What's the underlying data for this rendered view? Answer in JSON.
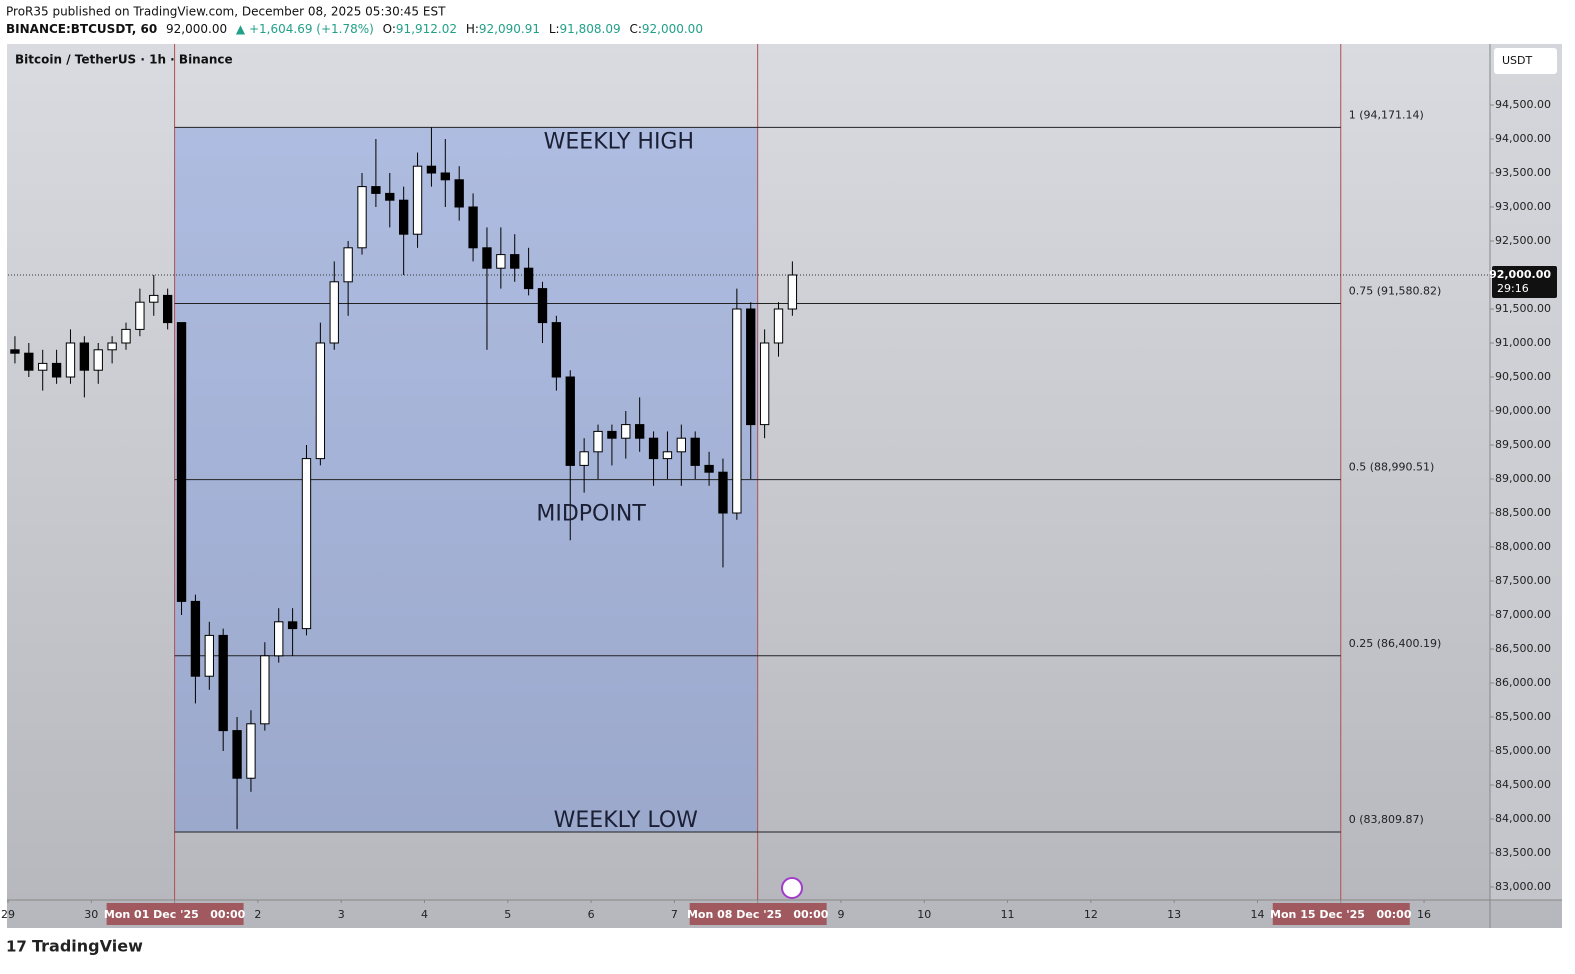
{
  "header": {
    "publisher": "ProR35 published on TradingView.com, December 08, 2025 05:30:45 EST",
    "symbol": "BINANCE:BTCUSDT, 60",
    "last": "92,000.00",
    "change": "▲ +1,604.69 (+1.78%)",
    "o_label": "O:",
    "o": "91,912.02",
    "h_label": "H:",
    "h": "92,090.91",
    "l_label": "L:",
    "l": "91,808.09",
    "c_label": "C:",
    "c": "92,000.00"
  },
  "chart_data": {
    "type": "candlestick",
    "title": "Bitcoin / TetherUS · 1h · Binance",
    "currency": "USDT",
    "x": [
      0,
      4,
      8,
      12,
      16,
      20,
      24,
      28,
      32,
      36,
      40,
      44,
      48,
      52,
      56,
      60,
      64,
      68,
      72,
      76,
      80,
      84,
      88,
      92,
      96,
      100,
      104,
      108,
      112,
      116,
      120,
      124,
      128,
      132,
      136,
      140,
      144,
      148,
      152,
      156,
      160,
      164,
      168,
      172,
      176,
      180,
      184,
      188,
      192,
      196,
      200,
      204,
      208,
      212,
      216,
      220,
      224
    ],
    "open": [
      90900,
      90850,
      90600,
      90700,
      90500,
      91000,
      90600,
      90900,
      91000,
      91200,
      91600,
      91700,
      91300,
      87200,
      86100,
      86700,
      85300,
      84600,
      85400,
      86400,
      86900,
      86800,
      89300,
      91000,
      91900,
      92400,
      93300,
      93200,
      93100,
      92600,
      93600,
      93500,
      93400,
      93000,
      92400,
      92100,
      92300,
      92100,
      91800,
      91300,
      90500,
      89200,
      89400,
      89700,
      89600,
      89800,
      89600,
      89300,
      89400,
      89600,
      89200,
      89100,
      88500,
      91500,
      89800,
      91000,
      91500
    ],
    "high": [
      91100,
      91000,
      90900,
      90900,
      91200,
      91100,
      91000,
      91100,
      91300,
      91800,
      92000,
      91800,
      91300,
      87300,
      86900,
      86800,
      85500,
      85600,
      86600,
      87100,
      87100,
      89500,
      91300,
      92200,
      92500,
      93500,
      94000,
      93500,
      93300,
      93800,
      94171,
      94000,
      93600,
      93200,
      92700,
      92700,
      92600,
      92400,
      91900,
      91400,
      90600,
      89600,
      89800,
      89800,
      90000,
      90200,
      89700,
      89700,
      89800,
      89700,
      89400,
      89300,
      91800,
      91600,
      91200,
      91600,
      92200
    ],
    "low": [
      90700,
      90500,
      90300,
      90400,
      90400,
      90200,
      90400,
      90700,
      90900,
      91100,
      91400,
      91200,
      87000,
      85700,
      85900,
      85000,
      83850,
      84400,
      85300,
      86300,
      86400,
      86700,
      89200,
      90900,
      91400,
      92300,
      93000,
      92700,
      92000,
      92400,
      93300,
      93000,
      92800,
      92200,
      90900,
      91800,
      91900,
      91700,
      91000,
      90300,
      88100,
      88800,
      89000,
      89200,
      89300,
      89400,
      88900,
      89000,
      88900,
      89000,
      88900,
      87700,
      88400,
      89000,
      89600,
      90800,
      91400
    ],
    "close": [
      90850,
      90600,
      90700,
      90500,
      91000,
      90600,
      90900,
      91000,
      91200,
      91600,
      91700,
      91300,
      87200,
      86100,
      86700,
      85300,
      84600,
      85400,
      86400,
      86900,
      86800,
      89300,
      91000,
      91900,
      92400,
      93300,
      93200,
      93100,
      92600,
      93600,
      93500,
      93400,
      93000,
      92400,
      92100,
      92300,
      92100,
      91800,
      91300,
      90500,
      89200,
      89400,
      89700,
      89600,
      89800,
      89600,
      89300,
      89400,
      89600,
      89200,
      89100,
      88500,
      91500,
      89800,
      91000,
      91500,
      92000
    ],
    "up_color": "#ffffff",
    "down_color": "#000000",
    "xlim": [
      0,
      427
    ],
    "xticks": [
      {
        "value": 0,
        "label": "29"
      },
      {
        "value": 24,
        "label": "30"
      },
      {
        "value": 48,
        "label": "Mon 01 Dec '25   00:00"
      },
      {
        "value": 72,
        "label": "2"
      },
      {
        "value": 96,
        "label": "3"
      },
      {
        "value": 120,
        "label": "4"
      },
      {
        "value": 144,
        "label": "5"
      },
      {
        "value": 168,
        "label": "6"
      },
      {
        "value": 192,
        "label": "7"
      },
      {
        "value": 216,
        "label": "Mon 08 Dec '25   00:00"
      },
      {
        "value": 240,
        "label": "9"
      },
      {
        "value": 264,
        "label": "10"
      },
      {
        "value": 288,
        "label": "11"
      },
      {
        "value": 312,
        "label": "12"
      },
      {
        "value": 336,
        "label": "13"
      },
      {
        "value": 360,
        "label": "14"
      },
      {
        "value": 384,
        "label": "Mon 15 Dec '25   00:00"
      },
      {
        "value": 408,
        "label": "16"
      }
    ],
    "week_lines": [
      48,
      216,
      384
    ],
    "ylim": [
      82809,
      95397
    ],
    "yticks": [
      {
        "value": 83000,
        "label": "83,000.00"
      },
      {
        "value": 83500,
        "label": "83,500.00"
      },
      {
        "value": 84000,
        "label": "84,000.00"
      },
      {
        "value": 84500,
        "label": "84,500.00"
      },
      {
        "value": 85000,
        "label": "85,000.00"
      },
      {
        "value": 85500,
        "label": "85,500.00"
      },
      {
        "value": 86000,
        "label": "86,000.00"
      },
      {
        "value": 86500,
        "label": "86,500.00"
      },
      {
        "value": 87000,
        "label": "87,000.00"
      },
      {
        "value": 87500,
        "label": "87,500.00"
      },
      {
        "value": 88000,
        "label": "88,000.00"
      },
      {
        "value": 88500,
        "label": "88,500.00"
      },
      {
        "value": 89000,
        "label": "89,000.00"
      },
      {
        "value": 89500,
        "label": "89,500.00"
      },
      {
        "value": 90000,
        "label": "90,000.00"
      },
      {
        "value": 90500,
        "label": "90,500.00"
      },
      {
        "value": 91000,
        "label": "91,000.00"
      },
      {
        "value": 91500,
        "label": "91,500.00"
      },
      {
        "value": 92000,
        "label": "92,000.00"
      },
      {
        "value": 92500,
        "label": "92,500.00"
      },
      {
        "value": 93000,
        "label": "93,000.00"
      },
      {
        "value": 93500,
        "label": "93,500.00"
      },
      {
        "value": 94000,
        "label": "94,000.00"
      },
      {
        "value": 94500,
        "label": "94,500.00"
      }
    ],
    "price_tag": {
      "value": 92000,
      "label": "92,000.00",
      "countdown": "29:16"
    },
    "fib_levels": [
      {
        "value": 94171.14,
        "label": "1 (94,171.14)"
      },
      {
        "value": 91580.82,
        "label": "0.75 (91,580.82)"
      },
      {
        "value": 88990.51,
        "label": "0.5 (88,990.51)"
      },
      {
        "value": 86400.19,
        "label": "0.25 (86,400.19)"
      },
      {
        "value": 83809.87,
        "label": "0 (83,809.87)"
      }
    ],
    "fib_range": [
      48,
      384
    ],
    "box": {
      "x": [
        48,
        216
      ],
      "y": [
        83809.87,
        94171.14
      ],
      "color": "rgba(90,130,230,0.32)"
    },
    "annotations": [
      {
        "text": "WEEKLY HIGH",
        "x": 176,
        "y": 93950
      },
      {
        "text": "MIDPOINT",
        "x": 168,
        "y": 88480
      },
      {
        "text": "WEEKLY LOW",
        "x": 178,
        "y": 83970
      }
    ]
  },
  "footer": {
    "brand": "TradingView"
  }
}
